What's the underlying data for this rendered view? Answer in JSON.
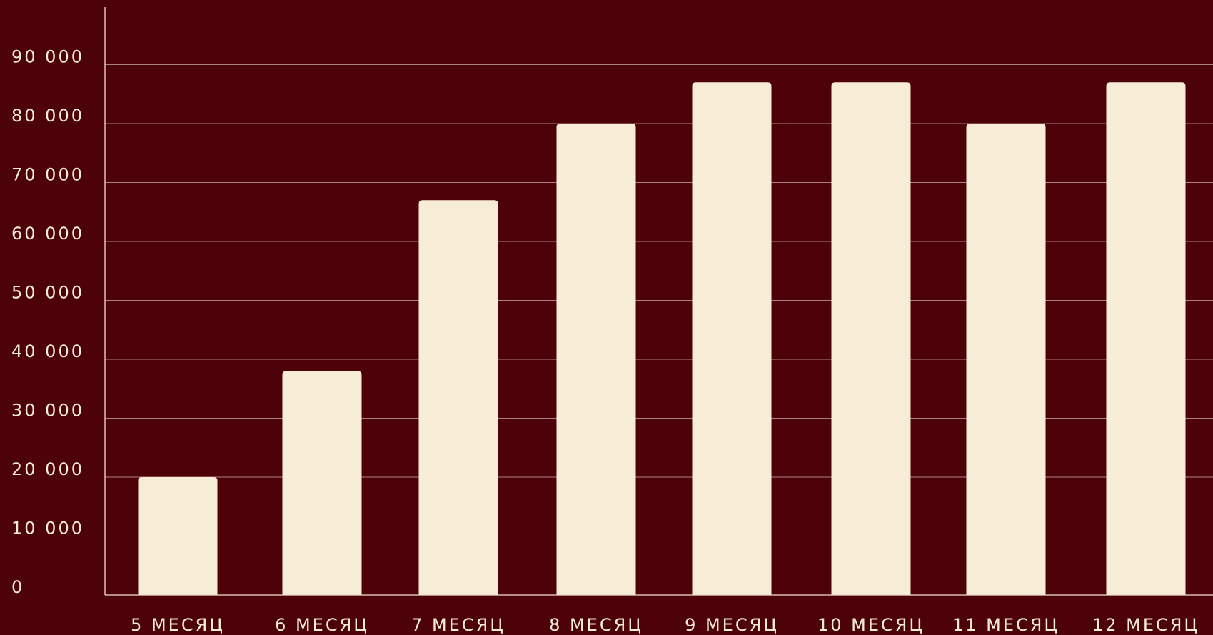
{
  "colors": {
    "background": "#4d020a",
    "bar": "#f7edd7",
    "grid": "#c9a9a9",
    "axis": "#efe3cf",
    "text": "#f5ecd5"
  },
  "chart_data": {
    "type": "bar",
    "title": "",
    "xlabel": "",
    "ylabel": "",
    "categories": [
      "5 МЕСЯЦ",
      "6 МЕСЯЦ",
      "7 МЕСЯЦ",
      "8 МЕСЯЦ",
      "9 МЕСЯЦ",
      "10 МЕСЯЦ",
      "11 МЕСЯЦ",
      "12 МЕСЯЦ"
    ],
    "values": [
      20000,
      38000,
      67000,
      80000,
      87000,
      87000,
      80000,
      87000
    ],
    "ylim": [
      0,
      100000
    ],
    "yticks": [
      0,
      10000,
      20000,
      30000,
      40000,
      50000,
      60000,
      70000,
      80000,
      90000
    ],
    "ytick_labels": [
      "0",
      "10 000",
      "20 000",
      "30 000",
      "40 000",
      "50 000",
      "60 000",
      "70 000",
      "80 000",
      "90 000"
    ],
    "grid": true,
    "legend": "none"
  }
}
